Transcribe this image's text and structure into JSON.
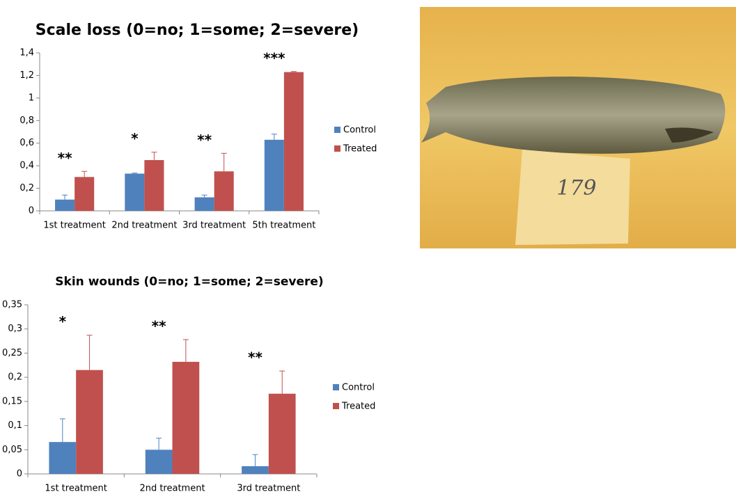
{
  "chart_data": [
    {
      "type": "bar",
      "title": "Scale loss (0=no; 1=some; 2=severe)",
      "categories": [
        "1st treatment",
        "2nd treatment",
        "3rd treatment",
        "5th treatment"
      ],
      "series": [
        {
          "name": "Control",
          "color": "#4f81bd",
          "values": [
            0.1,
            0.33,
            0.12,
            0.63
          ],
          "errors": [
            0.04,
            0.005,
            0.02,
            0.05
          ]
        },
        {
          "name": "Treated",
          "color": "#c0504d",
          "values": [
            0.3,
            0.45,
            0.35,
            1.23
          ],
          "errors": [
            0.05,
            0.07,
            0.16,
            0.005
          ]
        }
      ],
      "annotations": [
        "**",
        "*",
        "**",
        "***"
      ],
      "ylim": [
        0,
        1.4
      ],
      "yticks": [
        0,
        {
          "value": 0.2,
          "label": "0,2"
        },
        {
          "value": 0.4,
          "label": "0,4"
        },
        {
          "value": 0.6,
          "label": "0,6"
        },
        {
          "value": 0.8,
          "label": "0,8"
        },
        1,
        {
          "value": 1.2,
          "label": "1,2"
        },
        {
          "value": 1.4,
          "label": "1,4"
        }
      ],
      "grid": false,
      "legend": "right"
    },
    {
      "type": "bar",
      "title": "Skin wounds (0=no; 1=some; 2=severe)",
      "categories": [
        "1st treatment",
        "2nd treatment",
        "3rd treatment"
      ],
      "series": [
        {
          "name": "Control",
          "color": "#4f81bd",
          "values": [
            0.066,
            0.05,
            0.016
          ],
          "errors": [
            0.048,
            0.024,
            0.024
          ]
        },
        {
          "name": "Treated",
          "color": "#c0504d",
          "values": [
            0.215,
            0.232,
            0.166
          ],
          "errors": [
            0.072,
            0.046,
            0.047
          ]
        }
      ],
      "annotations": [
        "*",
        "**",
        "**"
      ],
      "ylim": [
        0,
        0.35
      ],
      "yticks": [
        0,
        {
          "value": 0.05,
          "label": "0,05"
        },
        {
          "value": 0.1,
          "label": "0,1"
        },
        {
          "value": 0.15,
          "label": "0,15"
        },
        {
          "value": 0.2,
          "label": "0,2"
        },
        {
          "value": 0.25,
          "label": "0,25"
        },
        {
          "value": 0.3,
          "label": "0,3"
        },
        {
          "value": 0.35,
          "label": "0,35"
        }
      ],
      "grid": false,
      "legend": "right"
    }
  ],
  "photo": {
    "label": "179"
  }
}
